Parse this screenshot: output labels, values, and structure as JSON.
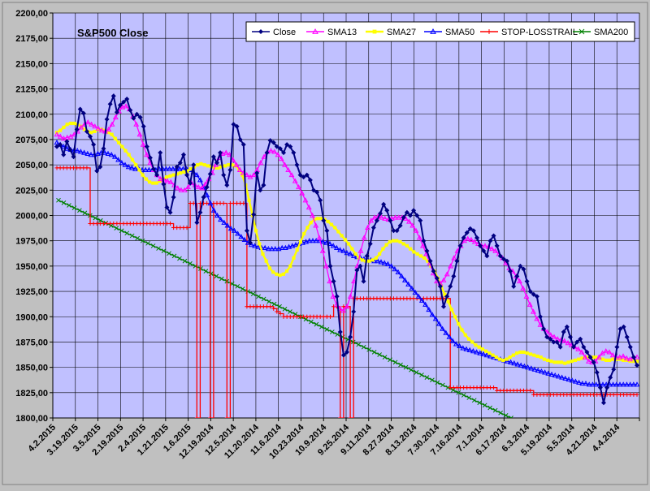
{
  "chart_data": {
    "type": "line",
    "title": "S&P500 Close",
    "ylim": [
      1800,
      2200
    ],
    "y_ticks": [
      "1800,00",
      "1825,00",
      "1850,00",
      "1875,00",
      "1900,00",
      "1925,00",
      "1950,00",
      "1975,00",
      "2000,00",
      "2025,00",
      "2050,00",
      "2075,00",
      "2100,00",
      "2125,00",
      "2150,00",
      "2175,00",
      "2200,00"
    ],
    "x_tick_labels": [
      "4.2.2015",
      "3.19.2015",
      "3.5.2015",
      "2.19.2015",
      "2.4.2015",
      "1.21.2015",
      "1.6.2015",
      "12.19.2014",
      "12.5.2014",
      "11.20.2014",
      "11.6.2014",
      "10.23.2014",
      "10.9.2014",
      "9.25.2014",
      "9.11.2014",
      "8.27.2014",
      "8.13.2014",
      "7.30.2014",
      "7.16.2014",
      "7.1.2014",
      "6.17.2014",
      "6.3.2014",
      "5.19.2014",
      "5.5.2014",
      "4.21.2014",
      "4.4.2014"
    ],
    "grid": true,
    "legend_position": "top-right",
    "colors": {
      "plot_bg": "#c0c0ff",
      "outer_bg": "#c0c0c0"
    },
    "series": [
      {
        "name": "Close",
        "color": "#000080",
        "marker": "diamond",
        "values": [
          2068,
          2070,
          2060,
          2073,
          2065,
          2058,
          2085,
          2105,
          2101,
          2083,
          2078,
          2070,
          2044,
          2048,
          2066,
          2095,
          2110,
          2118,
          2102,
          2109,
          2112,
          2115,
          2104,
          2096,
          2100,
          2097,
          2088,
          2068,
          2057,
          2046,
          2040,
          2062,
          2031,
          2008,
          2003,
          2018,
          2048,
          2052,
          2060,
          2040,
          2032,
          2050,
          1993,
          2003,
          2018,
          2028,
          2041,
          2058,
          2052,
          2062,
          2040,
          2030,
          2045,
          2090,
          2088,
          2075,
          2070,
          1985,
          1973,
          2001,
          2042,
          2025,
          2030,
          2062,
          2074,
          2072,
          2068,
          2066,
          2062,
          2070,
          2068,
          2062,
          2050,
          2040,
          2038,
          2040,
          2035,
          2025,
          2023,
          2015,
          1995,
          1985,
          1950,
          1935,
          1920,
          1885,
          1862,
          1865,
          1880,
          1905,
          1946,
          1950,
          1935,
          1960,
          1972,
          1988,
          1995,
          2002,
          2011,
          2005,
          1995,
          1985,
          1985,
          1990,
          1998,
          2003,
          2000,
          2005,
          2000,
          1995,
          1975,
          1965,
          1955,
          1945,
          1938,
          1930,
          1910,
          1920,
          1930,
          1940,
          1955,
          1970,
          1978,
          1983,
          1987,
          1985,
          1978,
          1970,
          1965,
          1960,
          1975,
          1980,
          1970,
          1960,
          1957,
          1955,
          1945,
          1930,
          1940,
          1950,
          1947,
          1935,
          1925,
          1922,
          1920,
          1900,
          1888,
          1880,
          1878,
          1875,
          1875,
          1870,
          1885,
          1890,
          1880,
          1870,
          1875,
          1878,
          1870,
          1865,
          1860,
          1855,
          1845,
          1830,
          1815,
          1830,
          1840,
          1848,
          1870,
          1888,
          1890,
          1880,
          1870,
          1860,
          1852
        ]
      },
      {
        "name": "SMA13",
        "color": "#ff00ff",
        "marker": "triangle",
        "values": [
          2080,
          2078,
          2076,
          2077,
          2078,
          2080,
          2083,
          2087,
          2090,
          2092,
          2090,
          2088,
          2086,
          2084,
          2083,
          2085,
          2090,
          2097,
          2103,
          2107,
          2108,
          2105,
          2098,
          2090,
          2080,
          2070,
          2060,
          2052,
          2045,
          2040,
          2036,
          2035,
          2034,
          2033,
          2030,
          2027,
          2025,
          2025,
          2028,
          2032,
          2030,
          2028,
          2027,
          2031,
          2036,
          2042,
          2050,
          2057,
          2061,
          2062,
          2060,
          2055,
          2050,
          2045,
          2042,
          2040,
          2038,
          2040,
          2045,
          2052,
          2058,
          2063,
          2064,
          2063,
          2060,
          2056,
          2050,
          2045,
          2040,
          2034,
          2028,
          2022,
          2015,
          2008,
          2000,
          1990,
          1978,
          1965,
          1950,
          1935,
          1920,
          1912,
          1908,
          1906,
          1910,
          1920,
          1935,
          1950,
          1965,
          1978,
          1988,
          1995,
          1998,
          1999,
          1998,
          1997,
          1996,
          1997,
          1998,
          1998,
          1998,
          1997,
          1994,
          1990,
          1985,
          1978,
          1970,
          1962,
          1953,
          1943,
          1935,
          1933,
          1936,
          1942,
          1950,
          1958,
          1965,
          1970,
          1975,
          1977,
          1976,
          1974,
          1972,
          1970,
          1970,
          1969,
          1967,
          1965,
          1962,
          1958,
          1953,
          1948,
          1945,
          1940,
          1935,
          1928,
          1920,
          1912,
          1905,
          1898,
          1892,
          1888,
          1885,
          1882,
          1880,
          1878,
          1877,
          1876,
          1874,
          1872,
          1870,
          1868,
          1865,
          1860,
          1856,
          1855,
          1856,
          1860,
          1864,
          1866,
          1865,
          1862,
          1860,
          1860,
          1861,
          1859,
          1858,
          1860,
          1860
        ]
      },
      {
        "name": "SMA27",
        "color": "#ffff00",
        "marker": "square",
        "values": [
          2082,
          2084,
          2087,
          2090,
          2091,
          2091,
          2090,
          2088,
          2085,
          2083,
          2082,
          2083,
          2085,
          2085,
          2084,
          2082,
          2080,
          2076,
          2072,
          2068,
          2064,
          2060,
          2055,
          2050,
          2045,
          2040,
          2036,
          2033,
          2032,
          2032,
          2034,
          2036,
          2038,
          2039,
          2040,
          2041,
          2042,
          2043,
          2044,
          2046,
          2048,
          2050,
          2051,
          2050,
          2049,
          2048,
          2047,
          2047,
          2048,
          2049,
          2050,
          2050,
          2049,
          2046,
          2040,
          2030,
          2015,
          2000,
          1985,
          1972,
          1962,
          1955,
          1948,
          1944,
          1942,
          1941,
          1942,
          1945,
          1950,
          1958,
          1966,
          1974,
          1982,
          1988,
          1993,
          1996,
          1997,
          1997,
          1996,
          1994,
          1991,
          1988,
          1984,
          1980,
          1976,
          1972,
          1967,
          1962,
          1958,
          1956,
          1955,
          1955,
          1956,
          1958,
          1962,
          1967,
          1971,
          1974,
          1975,
          1975,
          1974,
          1972,
          1970,
          1967,
          1964,
          1962,
          1960,
          1958,
          1955,
          1950,
          1945,
          1938,
          1930,
          1922,
          1915,
          1907,
          1900,
          1893,
          1887,
          1882,
          1878,
          1875,
          1872,
          1870,
          1868,
          1866,
          1864,
          1862,
          1860,
          1858,
          1857,
          1858,
          1860,
          1862,
          1864,
          1865,
          1865,
          1864,
          1863,
          1862,
          1861,
          1860,
          1858,
          1857,
          1856,
          1855,
          1855,
          1855,
          1854,
          1855,
          1856,
          1857,
          1858,
          1859,
          1860,
          1860,
          1860,
          1860,
          1859,
          1858,
          1857,
          1857,
          1858,
          1858,
          1858,
          1857,
          1857,
          1856,
          1856,
          1856
        ]
      },
      {
        "name": "SMA50",
        "color": "#0000ff",
        "marker": "triangle",
        "values": [
          2072,
          2070,
          2068,
          2066,
          2065,
          2064,
          2064,
          2063,
          2062,
          2061,
          2060,
          2060,
          2061,
          2062,
          2062,
          2061,
          2060,
          2058,
          2055,
          2052,
          2050,
          2048,
          2047,
          2046,
          2046,
          2045,
          2045,
          2045,
          2045,
          2045,
          2046,
          2046,
          2046,
          2046,
          2046,
          2046,
          2046,
          2046,
          2046,
          2045,
          2043,
          2040,
          2035,
          2028,
          2020,
          2012,
          2005,
          2000,
          1996,
          1993,
          1990,
          1987,
          1985,
          1982,
          1979,
          1976,
          1973,
          1971,
          1970,
          1969,
          1968,
          1968,
          1967,
          1967,
          1967,
          1967,
          1968,
          1968,
          1969,
          1970,
          1971,
          1972,
          1973,
          1974,
          1975,
          1975,
          1975,
          1975,
          1974,
          1973,
          1972,
          1970,
          1968,
          1966,
          1965,
          1963,
          1962,
          1960,
          1959,
          1958,
          1957,
          1956,
          1956,
          1955,
          1955,
          1954,
          1953,
          1952,
          1950,
          1947,
          1944,
          1940,
          1936,
          1932,
          1928,
          1924,
          1920,
          1916,
          1912,
          1907,
          1902,
          1898,
          1893,
          1888,
          1884,
          1880,
          1876,
          1873,
          1871,
          1869,
          1868,
          1867,
          1866,
          1865,
          1864,
          1863,
          1862,
          1861,
          1860,
          1859,
          1858,
          1857,
          1856,
          1855,
          1854,
          1853,
          1852,
          1851,
          1850,
          1849,
          1848,
          1847,
          1846,
          1845,
          1844,
          1843,
          1842,
          1841,
          1840,
          1839,
          1838,
          1837,
          1836,
          1835,
          1834,
          1834,
          1833,
          1833,
          1833,
          1833,
          1833,
          1833,
          1833,
          1833,
          1833,
          1833,
          1833,
          1833,
          1833,
          1833,
          1833
        ]
      },
      {
        "name": "STOP-LOSSTRAIL",
        "color": "#ff0000",
        "marker": "plus",
        "values": [
          2047,
          2047,
          2047,
          2047,
          2047,
          2047,
          2047,
          2047,
          2047,
          2047,
          1992,
          1992,
          1992,
          1992,
          1992,
          1992,
          1992,
          1992,
          1992,
          1992,
          1992,
          1992,
          1992,
          1992,
          1992,
          1992,
          1992,
          1992,
          1992,
          1992,
          1992,
          1992,
          1992,
          1992,
          1992,
          1988,
          1988,
          1988,
          1988,
          1988,
          2012,
          2012,
          1800,
          2012,
          2012,
          2012,
          1800,
          2012,
          2012,
          2012,
          2012,
          1800,
          2012,
          2012,
          2012,
          2012,
          2012,
          1910,
          1910,
          1910,
          1910,
          1910,
          1910,
          1910,
          1910,
          1908,
          1905,
          1903,
          1900,
          1900,
          1900,
          1900,
          1900,
          1900,
          1900,
          1900,
          1900,
          1900,
          1900,
          1900,
          1900,
          1900,
          1900,
          1910,
          1910,
          1800,
          1910,
          1910,
          1800,
          1918,
          1918,
          1918,
          1918,
          1918,
          1918,
          1918,
          1918,
          1918,
          1918,
          1918,
          1918,
          1918,
          1918,
          1918,
          1918,
          1918,
          1918,
          1918,
          1918,
          1918,
          1918,
          1918,
          1918,
          1918,
          1918,
          1918,
          1918,
          1918,
          1830,
          1830,
          1830,
          1830,
          1830,
          1830,
          1830,
          1830,
          1830,
          1830,
          1830,
          1830,
          1830,
          1830,
          1827,
          1827,
          1827,
          1827,
          1827,
          1827,
          1827,
          1827,
          1827,
          1827,
          1827,
          1823,
          1823,
          1823,
          1823,
          1823,
          1823,
          1823,
          1823,
          1823,
          1823,
          1823,
          1823,
          1823,
          1823,
          1823,
          1823,
          1823,
          1823,
          1823,
          1823,
          1823,
          1823,
          1823,
          1823,
          1823,
          1823,
          1823,
          1823,
          1823,
          1823,
          1823,
          1823
        ]
      },
      {
        "name": "SMA200",
        "color": "#008000",
        "marker": "x",
        "values": [
          2015,
          2000,
          1985,
          1970,
          1955,
          1940,
          1925,
          1910,
          1895,
          1880,
          1865,
          1850,
          1835,
          1820,
          1805,
          1790
        ]
      }
    ]
  }
}
